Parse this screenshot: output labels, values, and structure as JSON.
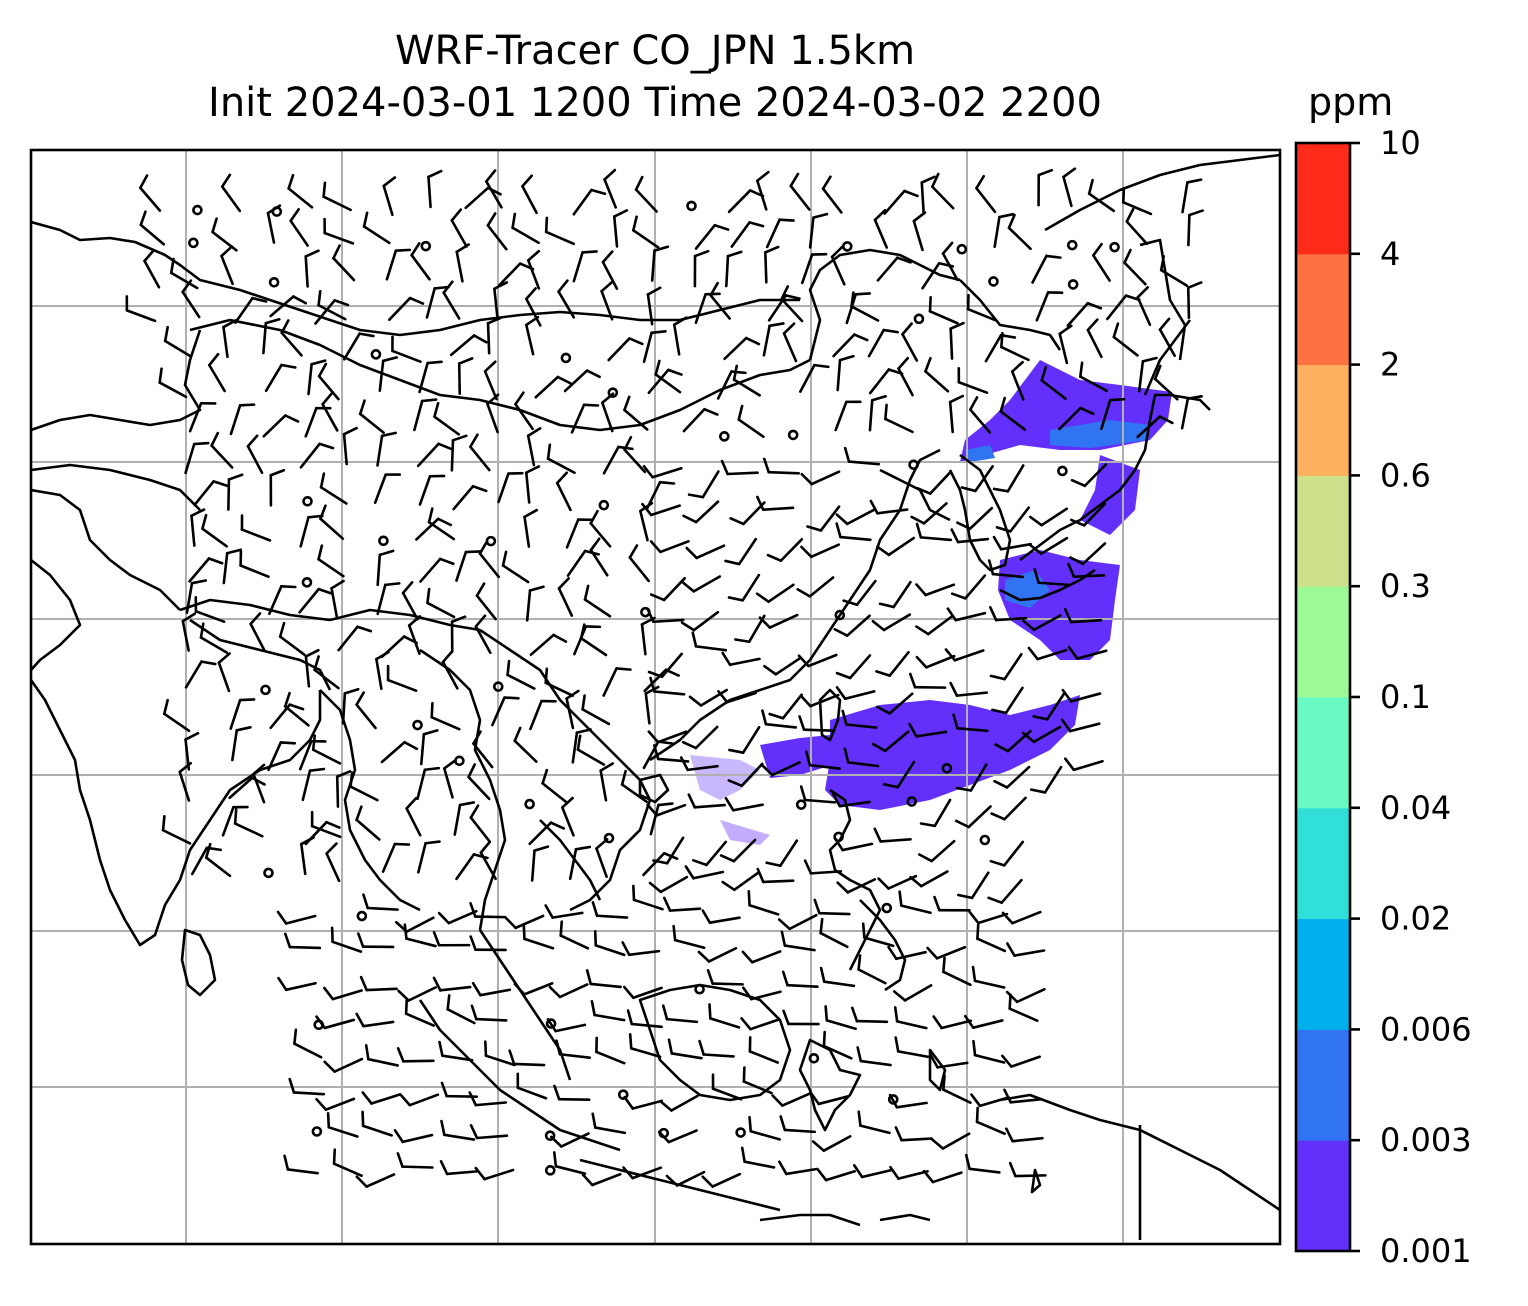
{
  "title": {
    "line1": "WRF-Tracer CO_JPN 1.5km",
    "line2": "Init 2024-03-01 1200 Time 2024-03-02 2200"
  },
  "colorbar": {
    "unit": "ppm",
    "levels": [
      "0.001",
      "0.003",
      "0.006",
      "0.02",
      "0.04",
      "0.1",
      "0.3",
      "0.6",
      "2",
      "4",
      "10"
    ],
    "colors": [
      "#6330fb",
      "#3073f3",
      "#00b0ec",
      "#30dfd7",
      "#69fac3",
      "#9bf996",
      "#cfe08a",
      "#ffaf60",
      "#ff7141",
      "#ff2b1a"
    ]
  },
  "map": {
    "plume_color": "#6330fb",
    "plume_accent_color": "#3073f3",
    "grid_color": "#b0b0b0",
    "coast_color": "#000000",
    "barb_color": "#000000"
  }
}
